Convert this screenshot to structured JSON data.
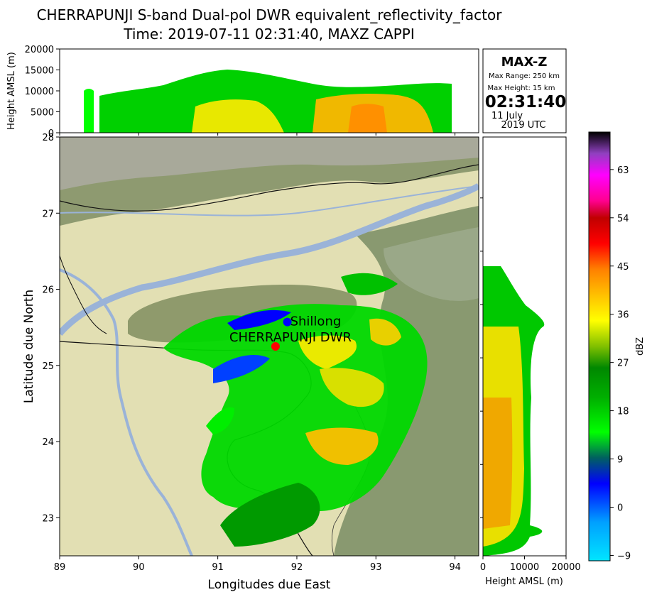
{
  "chart_data": {
    "type": "heatmap",
    "title_line1": "CHERRAPUNJI S-band Dual-pol DWR equivalent_reflectivity_factor",
    "title_line2": "Time: 2019-07-11 02:31:40, MAXZ CAPPI",
    "main_panel": {
      "xlabel": "Longitudes due East",
      "ylabel": "Latitude due North",
      "xlim": [
        89,
        94.3
      ],
      "ylim": [
        22.5,
        28
      ],
      "xticks": [
        "89",
        "90",
        "91",
        "92",
        "93",
        "94"
      ],
      "yticks": [
        "23",
        "24",
        "25",
        "26",
        "27",
        "28"
      ],
      "points": [
        {
          "name": "Shillong",
          "lon": 91.88,
          "lat": 25.57,
          "color": "#0000ff"
        },
        {
          "name": "CHERRAPUNJI DWR",
          "lon": 91.73,
          "lat": 25.25,
          "color": "#ff0000"
        }
      ]
    },
    "top_panel": {
      "ylabel": "Height AMSL (m)",
      "ylim": [
        0,
        20000
      ],
      "yticks": [
        "0",
        "5000",
        "10000",
        "15000",
        "20000"
      ]
    },
    "right_panel": {
      "xlabel": "Height AMSL (m)",
      "xlim": [
        0,
        20000
      ],
      "xticks": [
        "0",
        "10000",
        "20000"
      ]
    },
    "colorbar": {
      "label": "dBZ",
      "range": [
        -10,
        70
      ],
      "ticks": [
        "-9",
        "0",
        "9",
        "18",
        "27",
        "36",
        "45",
        "54",
        "63"
      ]
    },
    "info_box": {
      "title": "MAX-Z",
      "max_range": "Max Range: 250 km",
      "max_height": "Max Height: 15 km",
      "time": "02:31:40",
      "date": "11 July",
      "year": "2019 UTC"
    }
  }
}
